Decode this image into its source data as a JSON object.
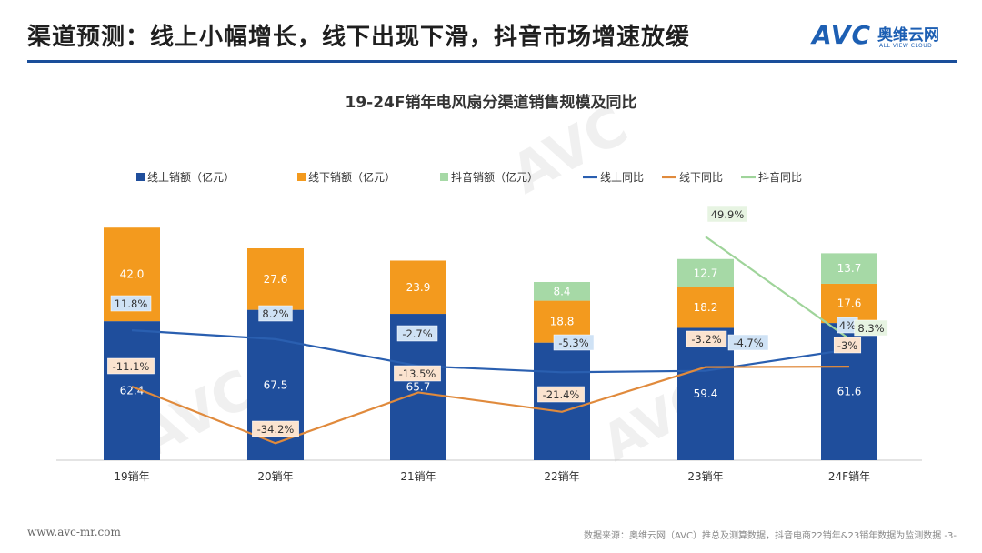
{
  "header": {
    "title": "渠道预测：线上小幅增长，线下出现下滑，抖音市场增速放缓",
    "logo_text": "AVC",
    "logo_cn": "奥维云网",
    "logo_en": "ALL VIEW CLOUD"
  },
  "footer": {
    "url": "www.avc-mr.com",
    "source": "数据来源：奥维云网（AVC）推总及测算数据，抖音电商22销年&23销年数据为监测数据   -3-"
  },
  "colors": {
    "online": "#1f4e9c",
    "offline": "#f39a1e",
    "douyin": "#a6d9a6",
    "online_line": "#2a5fb0",
    "offline_line": "#e08a3c",
    "douyin_line": "#9fd49a",
    "online_label_bg": "#cfe2f5",
    "offline_label_bg": "#fbe3cf",
    "douyin_label_bg": "#e7f4e2"
  },
  "chart_data": {
    "type": "bar",
    "title": "19-24F销年电风扇分渠道销售规模及同比",
    "categories": [
      "19销年",
      "20销年",
      "21销年",
      "22销年",
      "23销年",
      "24F销年"
    ],
    "series": [
      {
        "name": "线上销额（亿元）",
        "kind": "bar",
        "values": [
          62.4,
          67.5,
          65.7,
          52.8,
          59.4,
          61.6
        ],
        "value_labels": [
          "62.4",
          "67.5",
          "65.7",
          "",
          "59.4",
          "61.6"
        ]
      },
      {
        "name": "线下销额（亿元）",
        "kind": "bar",
        "values": [
          42.0,
          27.6,
          23.9,
          18.8,
          18.2,
          17.6
        ],
        "value_labels": [
          "42.0",
          "27.6",
          "23.9",
          "18.8",
          "18.2",
          "17.6"
        ]
      },
      {
        "name": "抖音销额（亿元）",
        "kind": "bar",
        "values": [
          null,
          null,
          null,
          8.4,
          12.7,
          13.7
        ],
        "value_labels": [
          "",
          "",
          "",
          "8.4",
          "12.7",
          "13.7"
        ]
      },
      {
        "name": "线上同比",
        "kind": "line",
        "values": [
          11.8,
          8.2,
          -2.7,
          -5.3,
          -4.7,
          4
        ],
        "value_labels": [
          "11.8%",
          "8.2%",
          "-2.7%",
          "-5.3%",
          "-4.7%",
          "4%"
        ]
      },
      {
        "name": "线下同比",
        "kind": "line",
        "values": [
          -11.1,
          -34.2,
          -13.5,
          -21.4,
          -3.2,
          -3
        ],
        "value_labels": [
          "-11.1%",
          "-34.2%",
          "-13.5%",
          "-21.4%",
          "-3.2%",
          "-3%"
        ]
      },
      {
        "name": "抖音同比",
        "kind": "line",
        "values": [
          null,
          null,
          null,
          null,
          49.9,
          8.3
        ],
        "value_labels": [
          "",
          "",
          "",
          "",
          "49.9%",
          "8.3%"
        ]
      }
    ],
    "legend_position": "top",
    "grid": false
  }
}
